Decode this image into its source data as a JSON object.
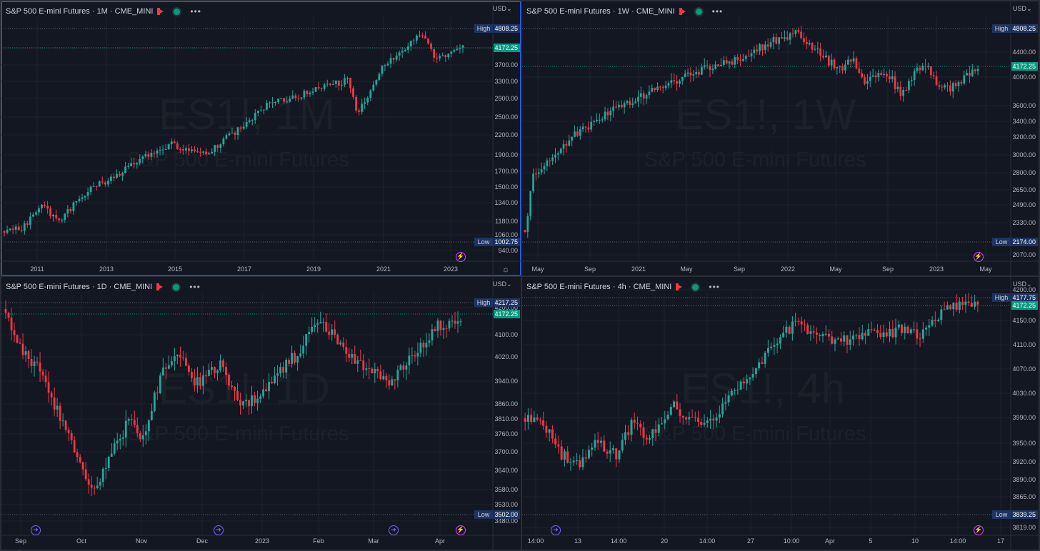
{
  "charts": [
    {
      "id": "tl",
      "title": "S&P 500 E-mini Futures · 1M · CME_MINI",
      "currency": "USD",
      "watermark": "ES1!, 1M",
      "watermark_sub": "S&P 500 E-mini Futures",
      "high_label": "High",
      "high_value": "4808.25",
      "low_label": "Low",
      "low_value": "1002.75",
      "last_value": "4172.25",
      "price_ticks": [
        "4200.00",
        "3700.00",
        "3300.00",
        "2900.00",
        "2500.00",
        "2200.00",
        "1900.00",
        "1700.00",
        "1500.00",
        "1340.00",
        "1180.00",
        "1060.00",
        "940.00"
      ],
      "time_ticks": [
        "2011",
        "2013",
        "2015",
        "2017",
        "2019",
        "2021",
        "2023"
      ],
      "icons": [
        "flash-icon",
        "settings-icon"
      ]
    },
    {
      "id": "tr",
      "title": "S&P 500 E-mini Futures · 1W · CME_MINI",
      "currency": "USD",
      "watermark": "ES1!, 1W",
      "watermark_sub": "S&P 500 E-mini Futures",
      "high_label": "High",
      "high_value": "4808.25",
      "low_label": "Low",
      "low_value": "2174.00",
      "last_value": "4172.25",
      "price_ticks": [
        "4400.00",
        "4000.00",
        "3600.00",
        "3400.00",
        "3200.00",
        "3000.00",
        "2800.00",
        "2650.00",
        "2490.00",
        "2330.00",
        "2070.00"
      ],
      "time_ticks": [
        "May",
        "Sep",
        "2021",
        "May",
        "Sep",
        "2022",
        "May",
        "Sep",
        "2023",
        "May"
      ],
      "icons": [
        "flash-icon"
      ]
    },
    {
      "id": "bl",
      "title": "S&P 500 E-mini Futures · 1D · CME_MINI",
      "currency": "USD",
      "watermark": "ES1!, 1D",
      "watermark_sub": "S&P 500 E-mini Futures",
      "high_label": "High",
      "high_value": "4217.25",
      "low_label": "Low",
      "low_value": "3502.00",
      "last_value": "4172.25",
      "price_ticks": [
        "4200.00",
        "4100.00",
        "4020.00",
        "3940.00",
        "3860.00",
        "3810.00",
        "3760.00",
        "3700.00",
        "3640.00",
        "3580.00",
        "3530.00",
        "3480.00"
      ],
      "time_ticks": [
        "Sep",
        "Oct",
        "Nov",
        "Dec",
        "2023",
        "Feb",
        "Mar",
        "Apr"
      ],
      "icons": [
        "arrow-icon",
        "arrow-icon",
        "arrow-icon",
        "flash-icon"
      ]
    },
    {
      "id": "br",
      "title": "S&P 500 E-mini Futures · 4h · CME_MINI",
      "currency": "USD",
      "watermark": "ES1!, 4h",
      "watermark_sub": "S&P 500 E-mini Futures",
      "high_label": "High",
      "high_value": "4177.75",
      "low_label": "Low",
      "low_value": "3839.25",
      "last_value": "4172.25",
      "price_ticks": [
        "4200.00",
        "4150.00",
        "4110.00",
        "4070.00",
        "4030.00",
        "3990.00",
        "3950.00",
        "3920.00",
        "3890.00",
        "3865.00",
        "3819.00"
      ],
      "time_ticks": [
        "14:00",
        "13",
        "14:00",
        "20",
        "14:00",
        "27",
        "10:00",
        "Apr",
        "5",
        "10",
        "14:00",
        "17"
      ],
      "icons": [
        "arrow-icon",
        "flash-icon"
      ]
    }
  ],
  "colors": {
    "background": "#131722",
    "border": "#2a2e39",
    "active_border": "#2962ff",
    "up": "#26a69a",
    "down": "#f23645",
    "last_price": "#089981",
    "high_low_box": "#1e3461",
    "axis_text": "#b2b5be"
  },
  "chart_data": [
    {
      "type": "candlestick",
      "title": "S&P 500 E-mini Futures · 1M · CME_MINI",
      "interval": "1M",
      "x_range": [
        "2010",
        "2023"
      ],
      "ylim": [
        940,
        4400
      ],
      "high": 4808.25,
      "low": 1002.75,
      "last": 4172.25,
      "series": [
        {
          "name": "ES1!",
          "x": [
            "2010",
            "2011",
            "2012",
            "2013",
            "2014",
            "2015",
            "2016",
            "2017",
            "2018",
            "2019",
            "2020",
            "2021",
            "2022",
            "2023"
          ],
          "close": [
            1080,
            1340,
            1300,
            1420,
            1780,
            2050,
            2050,
            2260,
            2700,
            2820,
            3240,
            3700,
            4680,
            4172
          ]
        }
      ]
    },
    {
      "type": "candlestick",
      "title": "S&P 500 E-mini Futures · 1W · CME_MINI",
      "interval": "1W",
      "x_range": [
        "Mar 2020",
        "May 2023"
      ],
      "ylim": [
        2070,
        4600
      ],
      "high": 4808.25,
      "low": 2174.0,
      "last": 4172.25,
      "series": [
        {
          "name": "ES1!",
          "x": [
            "2020-04",
            "2020-06",
            "2020-09",
            "2020-12",
            "2021-03",
            "2021-06",
            "2021-09",
            "2021-12",
            "2022-03",
            "2022-06",
            "2022-09",
            "2022-12",
            "2023-02",
            "2023-04"
          ],
          "close": [
            2450,
            3000,
            3280,
            3550,
            3800,
            4100,
            4400,
            4690,
            4380,
            3800,
            3620,
            3980,
            4080,
            4172
          ]
        }
      ]
    },
    {
      "type": "candlestick",
      "title": "S&P 500 E-mini Futures · 1D · CME_MINI",
      "interval": "1D",
      "x_range": [
        "Aug 2022",
        "Apr 2023"
      ],
      "ylim": [
        3480,
        4220
      ],
      "high": 4217.25,
      "low": 3502.0,
      "last": 4172.25,
      "series": [
        {
          "name": "ES1!",
          "x": [
            "2022-08-26",
            "2022-09-13",
            "2022-09-30",
            "2022-10-12",
            "2022-10-27",
            "2022-11-10",
            "2022-12-01",
            "2022-12-22",
            "2023-01-10",
            "2023-02-02",
            "2023-02-15",
            "2023-03-09",
            "2023-03-31",
            "2023-04-12"
          ],
          "close": [
            4200,
            3940,
            3620,
            3560,
            3810,
            3990,
            4080,
            3830,
            3950,
            4190,
            4100,
            3860,
            4120,
            4172
          ]
        }
      ]
    },
    {
      "type": "candlestick",
      "title": "S&P 500 E-mini Futures · 4h · CME_MINI",
      "interval": "4h",
      "x_range": [
        "Mar 10 2023",
        "Apr 14 2023"
      ],
      "ylim": [
        3819,
        4200
      ],
      "high": 4177.75,
      "low": 3839.25,
      "last": 4172.25,
      "series": [
        {
          "name": "ES1!",
          "x": [
            "03-10",
            "03-13",
            "03-14",
            "03-16",
            "03-20",
            "03-22",
            "03-24",
            "03-27",
            "03-29",
            "03-31",
            "04-04",
            "04-06",
            "04-11",
            "04-14"
          ],
          "close": [
            3985,
            3930,
            3870,
            3950,
            3980,
            3970,
            3990,
            3960,
            4020,
            4090,
            4140,
            4110,
            4125,
            4172
          ]
        }
      ]
    }
  ]
}
